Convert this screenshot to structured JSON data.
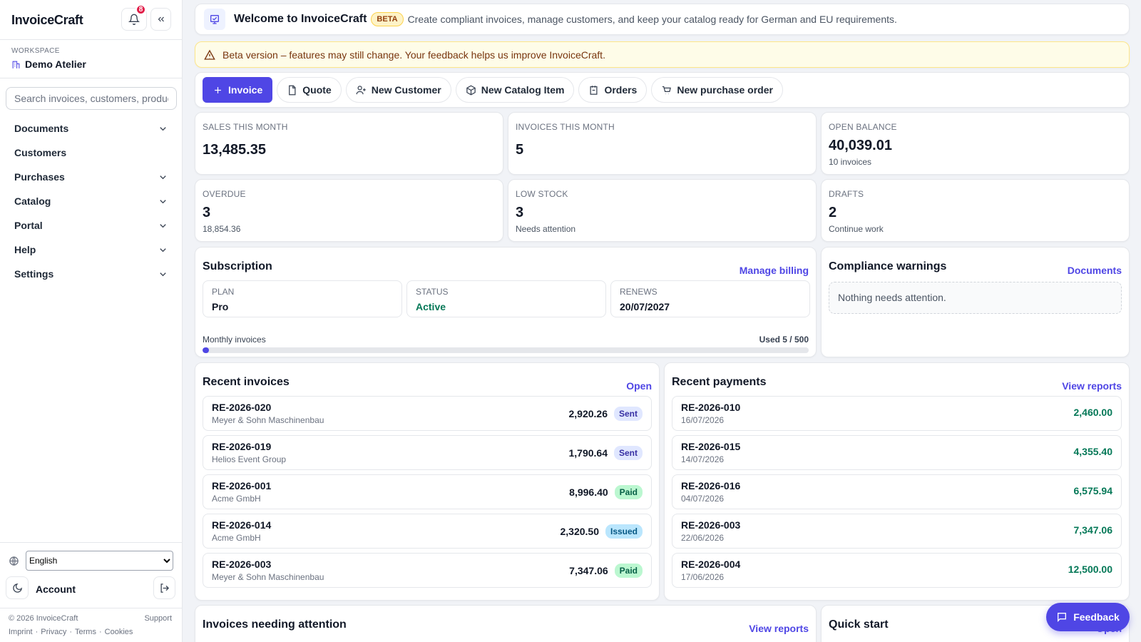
{
  "sidebar": {
    "brand": "InvoiceCraft",
    "notification_count": "8",
    "workspace_label": "WORKSPACE",
    "workspace_name": "Demo Atelier",
    "search_placeholder": "Search invoices, customers, products",
    "nav": [
      {
        "label": "Documents",
        "submenu": true
      },
      {
        "label": "Customers",
        "submenu": false
      },
      {
        "label": "Purchases",
        "submenu": true
      },
      {
        "label": "Catalog",
        "submenu": true
      },
      {
        "label": "Portal",
        "submenu": true
      },
      {
        "label": "Help",
        "submenu": true
      },
      {
        "label": "Settings",
        "submenu": true
      }
    ],
    "language": "English",
    "account": "Account",
    "copyright": "© 2026 InvoiceCraft",
    "support": "Support",
    "footer_links": [
      "Imprint",
      "Privacy",
      "Terms",
      "Cookies"
    ]
  },
  "header": {
    "title": "Welcome to InvoiceCraft",
    "badge": "BETA",
    "subtitle": "Create compliant invoices, manage customers, and keep your catalog ready for German and EU requirements."
  },
  "banner": "Beta version – features may still change. Your feedback helps us improve InvoiceCraft.",
  "actions": [
    "Invoice",
    "Quote",
    "New Customer",
    "New Catalog Item",
    "Orders",
    "New purchase order"
  ],
  "kpis": [
    {
      "label": "SALES THIS MONTH",
      "value": "13,485.35"
    },
    {
      "label": "INVOICES THIS MONTH",
      "value": "5"
    },
    {
      "label": "OPEN BALANCE",
      "value": "40,039.01",
      "note": "10 invoices"
    },
    {
      "label": "OVERDUE",
      "value": "3",
      "note": "18,854.36"
    },
    {
      "label": "LOW STOCK",
      "value": "3",
      "note": "Needs attention"
    },
    {
      "label": "DRAFTS",
      "value": "2",
      "note": "Continue work"
    }
  ],
  "subscription": {
    "title": "Subscription",
    "link": "Manage billing",
    "fields": [
      {
        "label": "PLAN",
        "value": "Pro"
      },
      {
        "label": "STATUS",
        "value": "Active",
        "color": "#047857"
      },
      {
        "label": "RENEWS",
        "value": "20/07/2027"
      }
    ],
    "usage_label": "Monthly invoices",
    "usage_text": "Used 5 / 500",
    "used": 5,
    "limit": 500
  },
  "compliance": {
    "title": "Compliance warnings",
    "link": "Documents",
    "empty": "Nothing needs attention."
  },
  "recent_invoices": {
    "title": "Recent invoices",
    "link": "Open",
    "rows": [
      {
        "number": "RE-2026-020",
        "customer": "Meyer & Sohn Maschinenbau",
        "amount": "2,920.26",
        "status": "Sent",
        "status_bg": "#e0e7ff",
        "status_fg": "#3730a3"
      },
      {
        "number": "RE-2026-019",
        "customer": "Helios Event Group",
        "amount": "1,790.64",
        "status": "Sent",
        "status_bg": "#e0e7ff",
        "status_fg": "#3730a3"
      },
      {
        "number": "RE-2026-001",
        "customer": "Acme GmbH",
        "amount": "8,996.40",
        "status": "Paid",
        "status_bg": "#bbf7d0",
        "status_fg": "#065f46"
      },
      {
        "number": "RE-2026-014",
        "customer": "Acme GmbH",
        "amount": "2,320.50",
        "status": "Issued",
        "status_bg": "#bae6fd",
        "status_fg": "#075985"
      },
      {
        "number": "RE-2026-003",
        "customer": "Meyer & Sohn Maschinenbau",
        "amount": "7,347.06",
        "status": "Paid",
        "status_bg": "#bbf7d0",
        "status_fg": "#065f46"
      }
    ]
  },
  "recent_payments": {
    "title": "Recent payments",
    "link": "View reports",
    "amount_color": "#047857",
    "rows": [
      {
        "number": "RE-2026-010",
        "date": "16/07/2026",
        "amount": "2,460.00"
      },
      {
        "number": "RE-2026-015",
        "date": "14/07/2026",
        "amount": "4,355.40"
      },
      {
        "number": "RE-2026-016",
        "date": "04/07/2026",
        "amount": "6,575.94"
      },
      {
        "number": "RE-2026-003",
        "date": "22/06/2026",
        "amount": "7,347.06"
      },
      {
        "number": "RE-2026-004",
        "date": "17/06/2026",
        "amount": "12,500.00"
      }
    ]
  },
  "attention": {
    "title": "Invoices needing attention",
    "link": "View reports"
  },
  "quick_start": {
    "title": "Quick start",
    "link": "Open"
  },
  "feedback": "Feedback"
}
